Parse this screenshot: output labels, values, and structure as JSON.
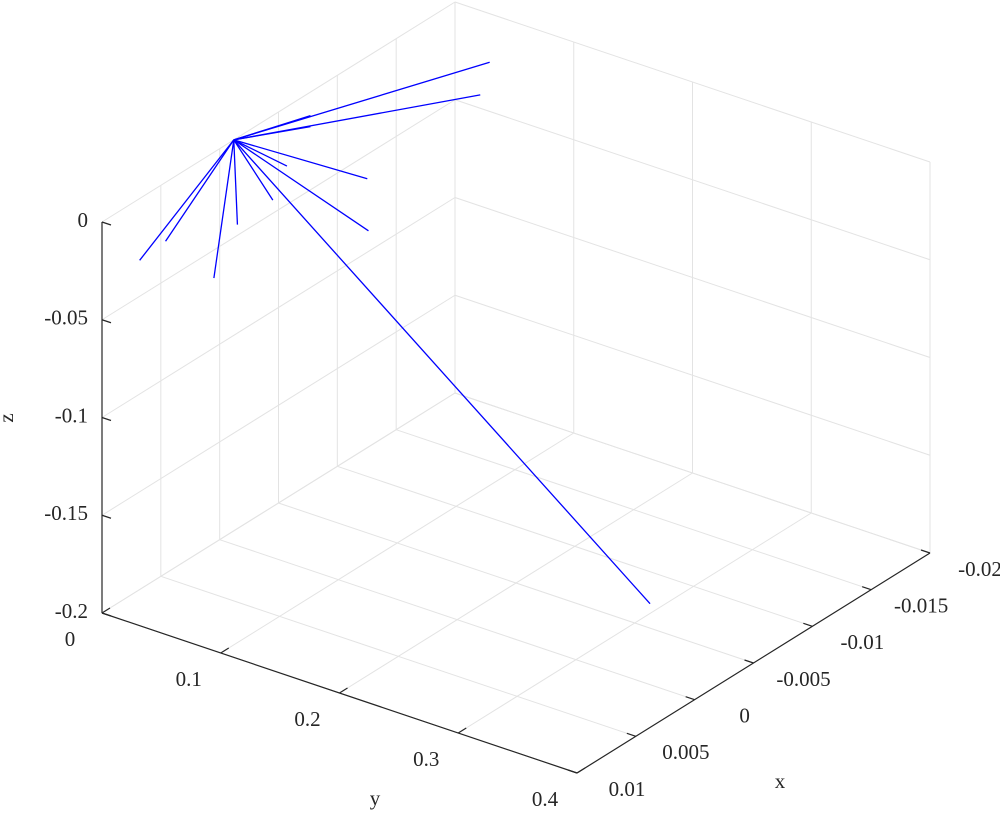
{
  "chart_data": {
    "type": "line3d",
    "x_label": "x",
    "y_label": "y",
    "z_label": "z",
    "color": "#0000ff",
    "grid": true,
    "xlim": [
      -0.02,
      0.01
    ],
    "ylim": [
      0,
      0.4
    ],
    "zlim": [
      -0.2,
      0
    ],
    "xticks": [
      -0.02,
      -0.015,
      -0.01,
      -0.005,
      0,
      0.005,
      0.01
    ],
    "yticks": [
      0,
      0.1,
      0.2,
      0.3,
      0.4
    ],
    "zticks": [
      -0.2,
      -0.15,
      -0.1,
      -0.05,
      0
    ],
    "lines": [
      {
        "x": [
          -0.0012,
          -0.0179
        ],
        "y": [
          0,
          0.05
        ],
        "z": [
          0,
          -0.0127
        ]
      },
      {
        "x": [
          -0.0012,
          -0.0171
        ],
        "y": [
          0,
          0.05
        ],
        "z": [
          0,
          -0.0264
        ]
      },
      {
        "x": [
          -0.0012,
          -0.0057
        ],
        "y": [
          0,
          0.02
        ],
        "z": [
          0,
          -0.0004
        ]
      },
      {
        "x": [
          -0.0012,
          -0.0057
        ],
        "y": [
          0,
          0.02
        ],
        "z": [
          0,
          -0.006
        ]
      },
      {
        "x": [
          -0.0012,
          -0.0075
        ],
        "y": [
          0,
          0.05
        ],
        "z": [
          0,
          -0.0333
        ]
      },
      {
        "x": [
          -0.0012,
          -0.0076
        ],
        "y": [
          0,
          0.05
        ],
        "z": [
          0,
          -0.0603
        ]
      },
      {
        "x": [
          -0.0012,
          -0.0037
        ],
        "y": [
          0,
          0.02
        ],
        "z": [
          0,
          -0.0187
        ]
      },
      {
        "x": [
          -0.0012,
          -0.0025
        ],
        "y": [
          0,
          0.02
        ],
        "z": [
          0,
          -0.0316
        ]
      },
      {
        "x": [
          -0.0012,
          -0.0005
        ],
        "y": [
          0,
          0.01
        ],
        "z": [
          0,
          -0.0387
        ]
      },
      {
        "x": [
          -0.0012,
          0.0015
        ],
        "y": [
          0,
          0.01
        ],
        "z": [
          0,
          -0.0585
        ]
      },
      {
        "x": [
          -0.0012,
          0.0046
        ],
        "y": [
          0,
          0
        ],
        "z": [
          0,
          -0.0301
        ]
      },
      {
        "x": [
          -0.0012,
          0.0068
        ],
        "y": [
          0,
          0
        ],
        "z": [
          0,
          -0.0316
        ]
      },
      {
        "x": [
          -0.0012,
          -0.0063
        ],
        "y": [
          0,
          0.3
        ],
        "z": [
          0,
          -0.195
        ]
      }
    ]
  }
}
